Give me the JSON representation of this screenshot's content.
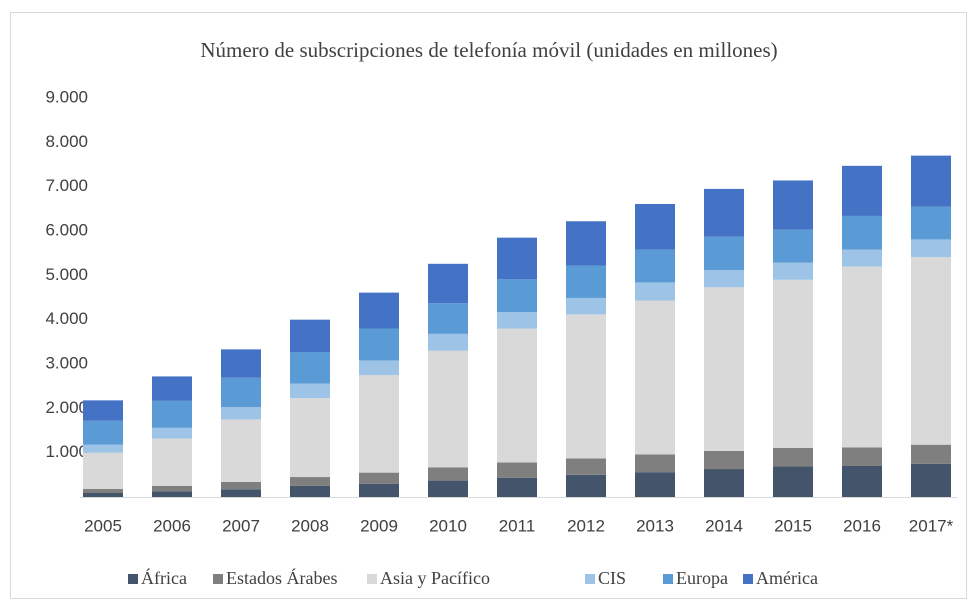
{
  "chart_data": {
    "type": "stacked_bar",
    "title": "Número de subscripciones de telefonía móvil (unidades en millones)",
    "categories": [
      "2005",
      "2006",
      "2007",
      "2008",
      "2009",
      "2010",
      "2011",
      "2012",
      "2013",
      "2014",
      "2015",
      "2016",
      "2017*"
    ],
    "series": [
      {
        "name": "África",
        "color": "#44546a",
        "values": [
          90,
          130,
          175,
          250,
          300,
          370,
          430,
          500,
          560,
          630,
          690,
          700,
          750
        ]
      },
      {
        "name": "Estados Árabes",
        "color": "#7f7f7f",
        "values": [
          90,
          120,
          165,
          200,
          250,
          300,
          350,
          370,
          400,
          410,
          420,
          420,
          430
        ]
      },
      {
        "name": "Asia y Pacífico",
        "color": "#d9d9d9",
        "values": [
          820,
          1070,
          1410,
          1780,
          2200,
          2630,
          3020,
          3250,
          3470,
          3690,
          3790,
          4080,
          4230
        ]
      },
      {
        "name": "CIS",
        "color": "#9dc3e6",
        "values": [
          180,
          240,
          280,
          330,
          330,
          380,
          370,
          370,
          410,
          390,
          390,
          380,
          400
        ]
      },
      {
        "name": "Europa",
        "color": "#5b9bd5",
        "values": [
          540,
          610,
          660,
          710,
          720,
          690,
          740,
          730,
          740,
          750,
          740,
          760,
          740
        ]
      },
      {
        "name": "América",
        "color": "#4472c4",
        "values": [
          460,
          550,
          640,
          730,
          810,
          890,
          940,
          1000,
          1030,
          1080,
          1110,
          1130,
          1150
        ]
      }
    ],
    "ylim": [
      0,
      9000
    ],
    "yticks": [
      {
        "value": 0,
        "label": "-"
      },
      {
        "value": 1000,
        "label": "1.000"
      },
      {
        "value": 2000,
        "label": "2.000"
      },
      {
        "value": 3000,
        "label": "3.000"
      },
      {
        "value": 4000,
        "label": "4.000"
      },
      {
        "value": 5000,
        "label": "5.000"
      },
      {
        "value": 6000,
        "label": "6.000"
      },
      {
        "value": 7000,
        "label": "7.000"
      },
      {
        "value": 8000,
        "label": "8.000"
      },
      {
        "value": 9000,
        "label": "9.000"
      }
    ],
    "grid": false,
    "legend": "bottom"
  }
}
